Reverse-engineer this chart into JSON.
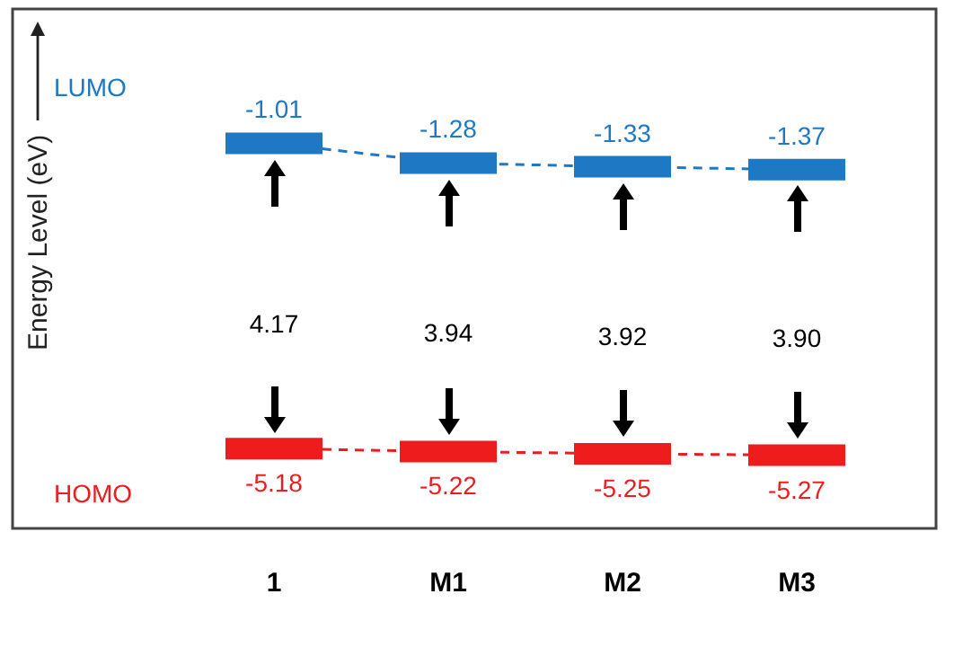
{
  "chart_data": {
    "type": "line",
    "ylabel": "Energy Level (eV)",
    "categories": [
      "1",
      "M1",
      "M2",
      "M3"
    ],
    "series": [
      {
        "name": "LUMO",
        "color": "#1f78c4",
        "values": [
          -1.01,
          -1.28,
          -1.33,
          -1.37
        ]
      },
      {
        "name": "HOMO",
        "color": "#ee1c1c",
        "values": [
          -5.18,
          -5.22,
          -5.25,
          -5.27
        ]
      }
    ],
    "annotations": [
      "4.17",
      "3.94",
      "3.92",
      "3.90"
    ],
    "data_labels": true,
    "line_style": "dashed",
    "legend": false,
    "grid": false
  }
}
